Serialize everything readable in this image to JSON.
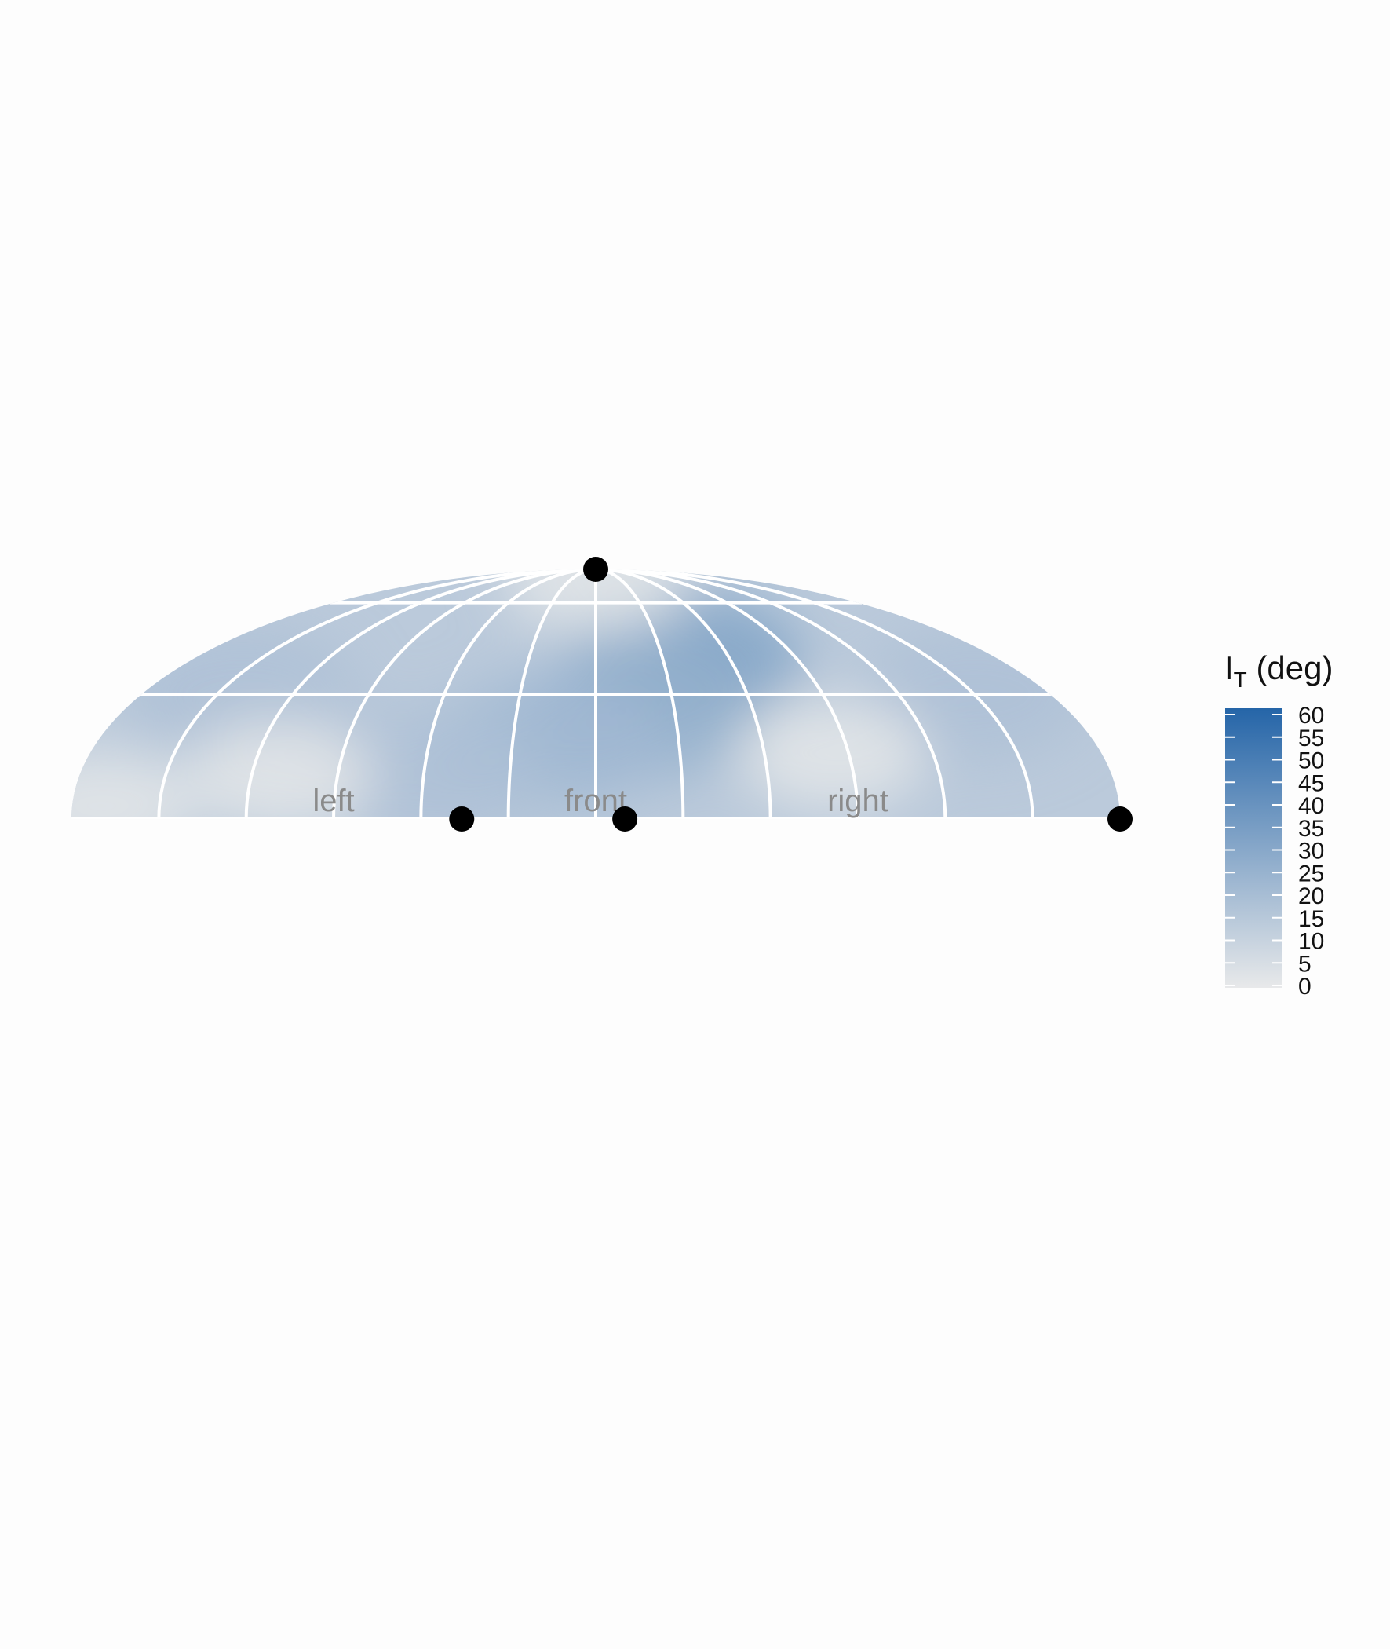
{
  "chart_data": {
    "type": "heatmap",
    "projection": "upper hemisphere (azimuth -90 to 90 deg, elevation 0 to 90 deg)",
    "title": "",
    "direction_labels": [
      {
        "text": "left",
        "azimuth": -45
      },
      {
        "text": "front",
        "azimuth": 0
      },
      {
        "text": "right",
        "azimuth": 45
      }
    ],
    "grid": {
      "azimuth_lines": [
        -75,
        -60,
        -45,
        -30,
        -15,
        0,
        15,
        30,
        45,
        60,
        75
      ],
      "elevation_lines": [
        30,
        60
      ],
      "color": "#ffffff"
    },
    "markers": [
      {
        "azimuth": 0,
        "elevation": 90
      },
      {
        "azimuth": -23,
        "elevation": 0
      },
      {
        "azimuth": 5,
        "elevation": 0
      },
      {
        "azimuth": 90,
        "elevation": 0
      }
    ],
    "hotspots": [
      {
        "azimuth": 20,
        "elevation": 40,
        "value": 32
      },
      {
        "azimuth": 8,
        "elevation": 25,
        "value": 26
      },
      {
        "azimuth": -8,
        "elevation": 18,
        "value": 22
      },
      {
        "azimuth": -70,
        "elevation": 30,
        "value": 18
      },
      {
        "azimuth": 75,
        "elevation": 30,
        "value": 18
      },
      {
        "azimuth": -30,
        "elevation": 10,
        "value": 18
      }
    ],
    "low_regions": [
      {
        "azimuth": -55,
        "elevation": 10
      },
      {
        "azimuth": 42,
        "elevation": 15
      },
      {
        "azimuth": 0,
        "elevation": 75
      },
      {
        "azimuth": -85,
        "elevation": 3
      }
    ],
    "colorbar": {
      "title_main": "I",
      "title_sub": "T",
      "title_suffix": " (deg)",
      "min": 0,
      "max": 60,
      "ticks": [
        0,
        5,
        10,
        15,
        20,
        25,
        30,
        35,
        40,
        45,
        50,
        55,
        60
      ],
      "color_low": "#e8e9ea",
      "color_high": "#2565a8"
    }
  }
}
